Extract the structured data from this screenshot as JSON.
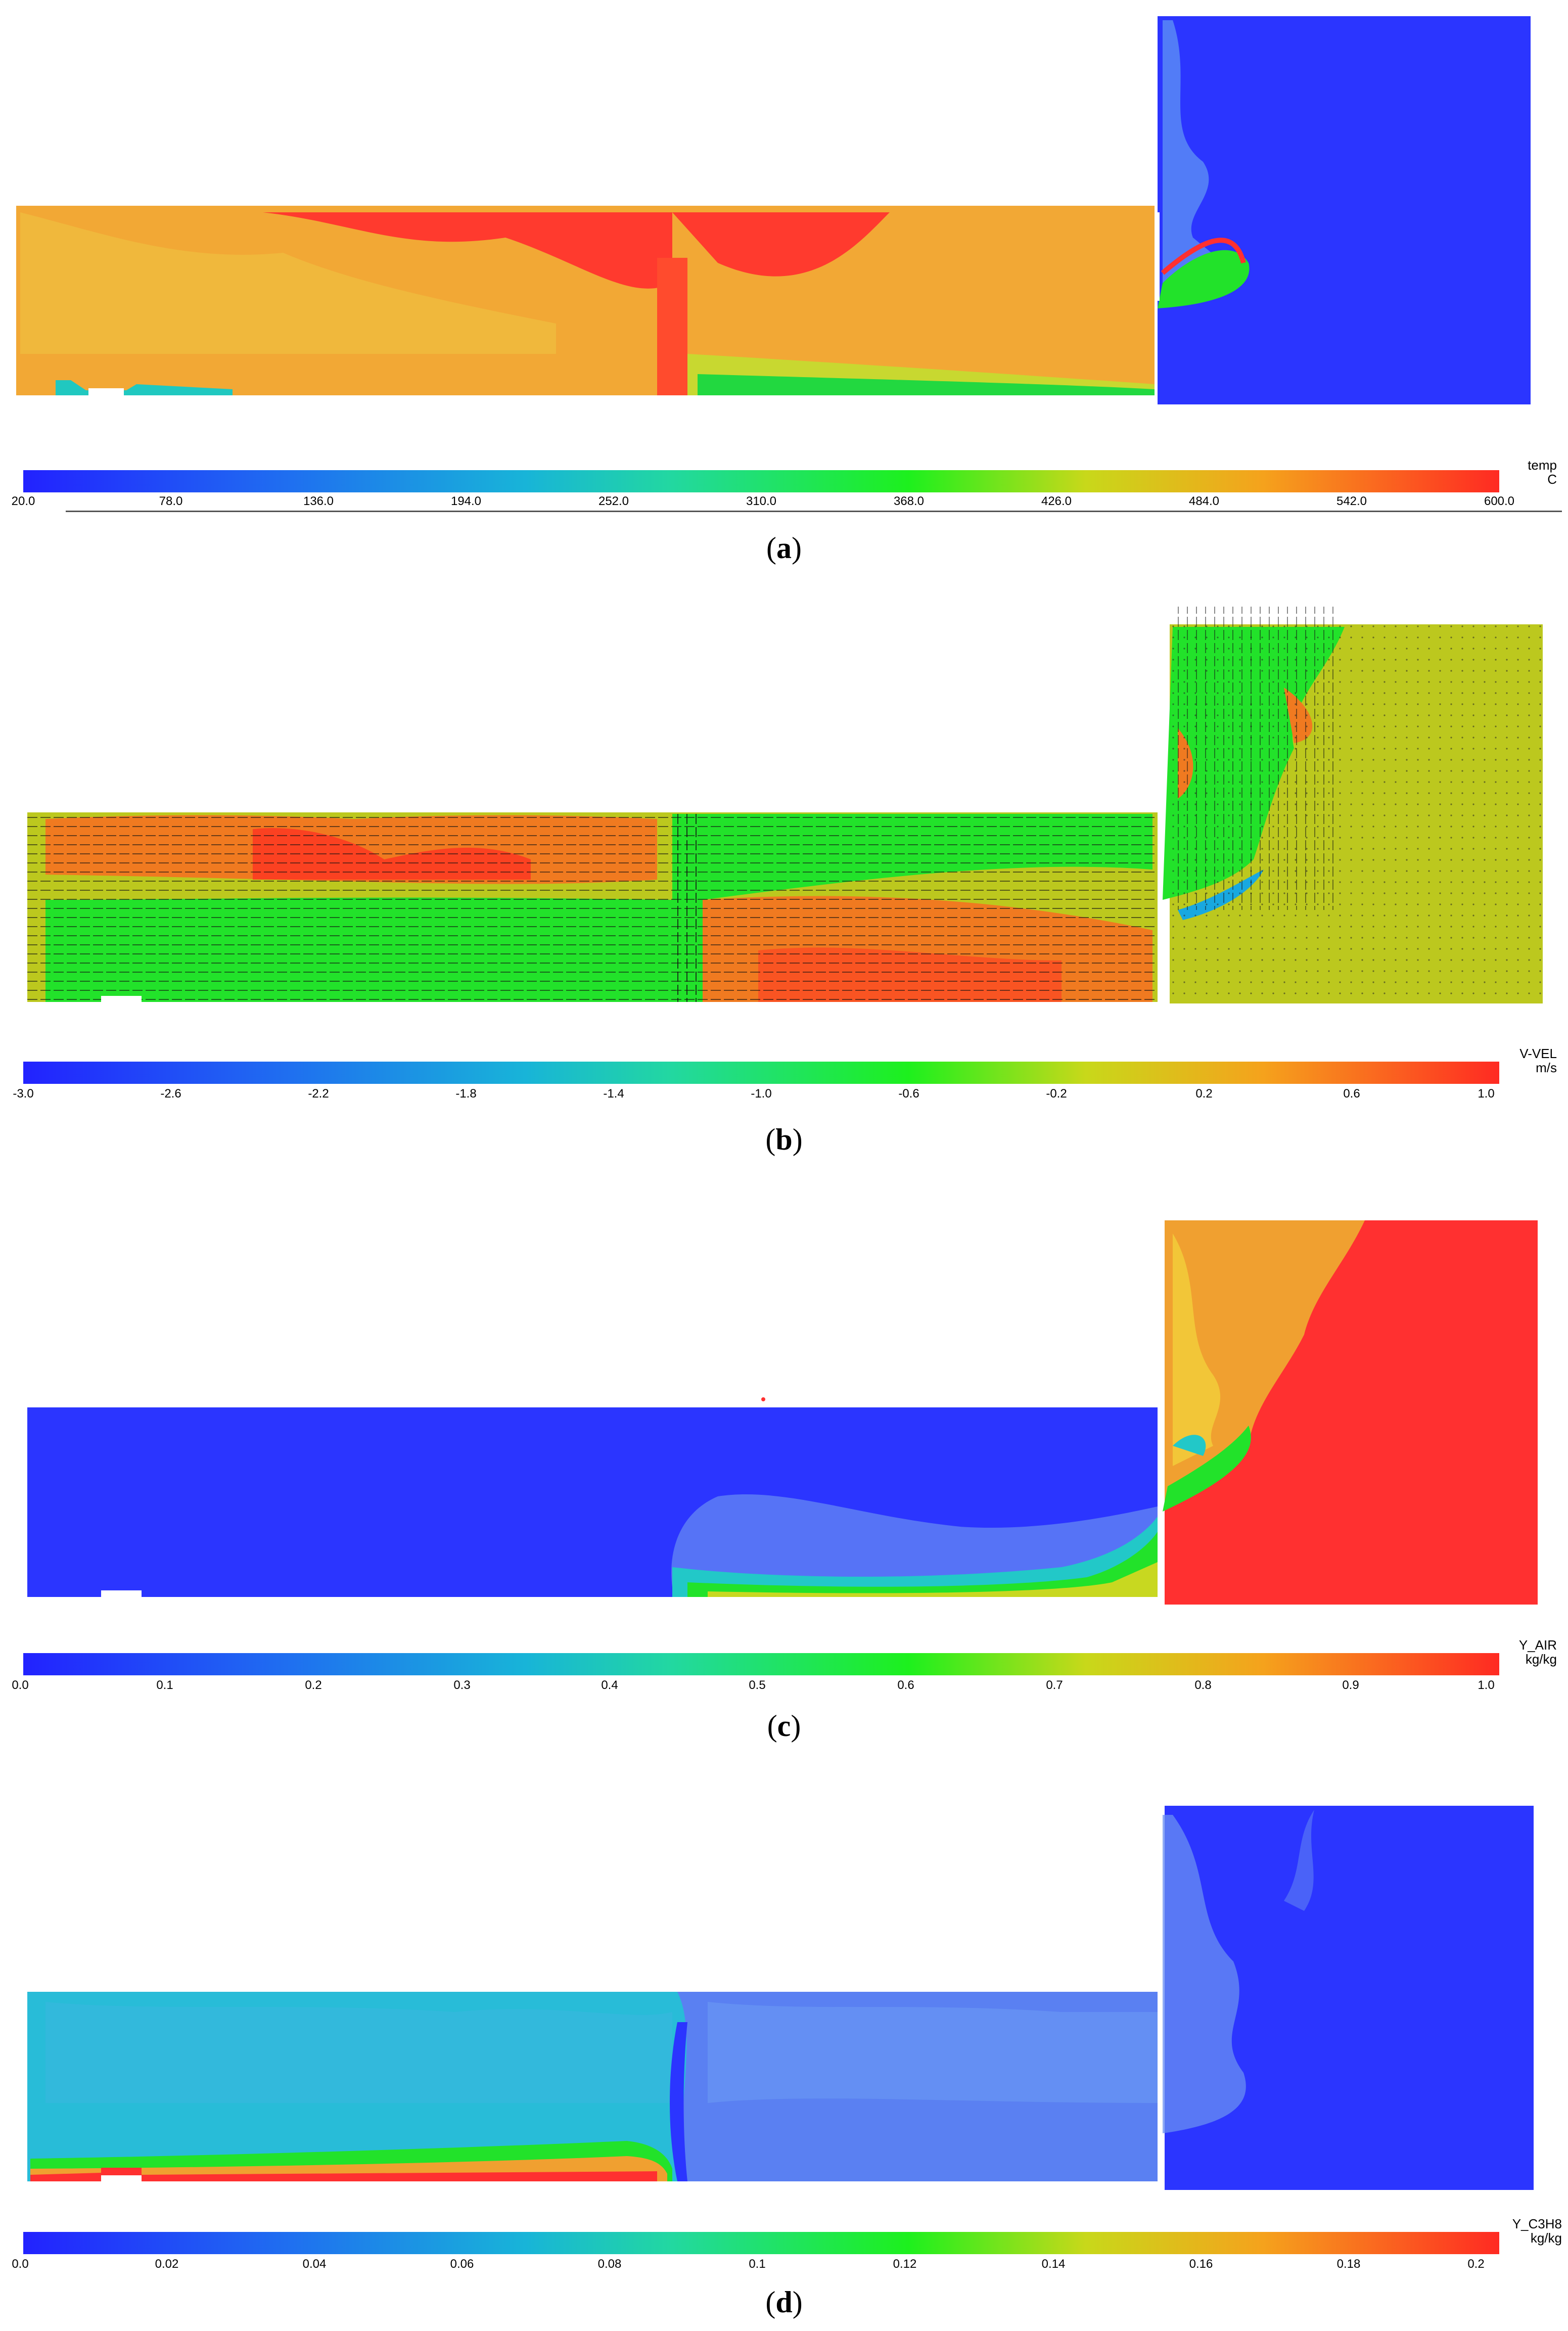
{
  "panels": [
    {
      "caption_letter": "a",
      "variable": "temp",
      "unit": "C",
      "ticks": [
        "20.0",
        "78.0",
        "136.0",
        "194.0",
        "252.0",
        "310.0",
        "368.0",
        "426.0",
        "484.0",
        "542.0",
        "600.0"
      ]
    },
    {
      "caption_letter": "b",
      "variable": "V-VEL",
      "unit": "m/s",
      "ticks": [
        "-3.0",
        "-2.6",
        "-2.2",
        "-1.8",
        "-1.4",
        "-1.0",
        "-0.6",
        "-0.2",
        "0.2",
        "0.6",
        "1.0"
      ]
    },
    {
      "caption_letter": "c",
      "variable": "Y_AIR",
      "unit": "kg/kg",
      "ticks": [
        "0.0",
        "0.1",
        "0.2",
        "0.3",
        "0.4",
        "0.5",
        "0.6",
        "0.7",
        "0.8",
        "0.9",
        "1.0"
      ]
    },
    {
      "caption_letter": "d",
      "variable": "Y_C3H8",
      "unit": "kg/kg",
      "ticks": [
        "0.0",
        "0.02",
        "0.04",
        "0.06",
        "0.08",
        "0.1",
        "0.12",
        "0.14",
        "0.16",
        "0.18",
        "0.2"
      ]
    }
  ],
  "colors": {
    "blue": "#2b35ff",
    "cyan": "#18c8c0",
    "green": "#22e22a",
    "yellow_green": "#bcc81e",
    "orange": "#f0a030",
    "red": "#ff3030"
  }
}
